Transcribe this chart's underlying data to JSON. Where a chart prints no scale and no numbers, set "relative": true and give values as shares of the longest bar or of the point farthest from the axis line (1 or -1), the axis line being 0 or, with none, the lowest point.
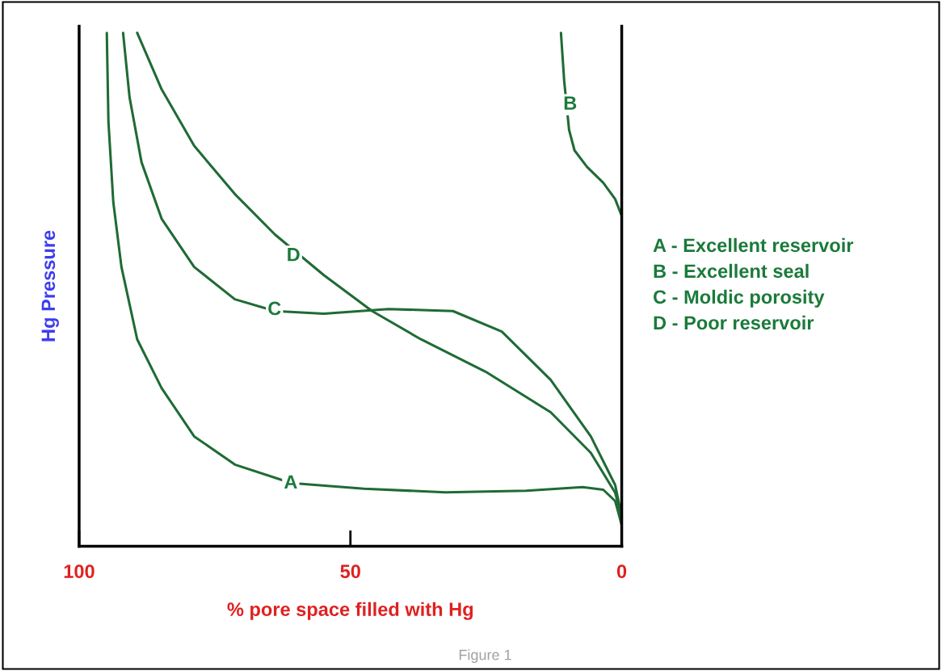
{
  "chart_data": {
    "type": "line",
    "relative": true,
    "xlabel": "% pore space filled with Hg",
    "ylabel": "Hg Pressure",
    "xlim": [
      100,
      0
    ],
    "xticks": [
      100,
      50,
      0
    ],
    "grid": false,
    "marker": "none",
    "line_style": "solid",
    "series": [
      {
        "color": "#1f6b35",
        "x": [
          94.9,
          94.6,
          93.7,
          92.2,
          89.3,
          84.8,
          78.8,
          71.3,
          60.9,
          47.5,
          32.5,
          17.6,
          7.2,
          3.4,
          1.2,
          0
        ],
        "values": [
          1,
          0.827,
          0.67,
          0.544,
          0.403,
          0.308,
          0.214,
          0.159,
          0.123,
          0.112,
          0.105,
          0.108,
          0.115,
          0.11,
          0.088,
          0.041
        ]
      },
      {
        "color": "#1f6b35",
        "x": [
          11.2,
          10.6,
          9.7,
          8.7,
          6.4,
          3.4,
          1.2,
          0.1
        ],
        "values": [
          1,
          0.906,
          0.811,
          0.771,
          0.739,
          0.708,
          0.676,
          0.646
        ]
      },
      {
        "color": "#1f6b35",
        "x": [
          91.9,
          90.7,
          88.5,
          84.8,
          78.8,
          71.3,
          63.9,
          54.9,
          43.0,
          31.1,
          22.1,
          13.1,
          5.7,
          1.2,
          0
        ],
        "values": [
          1,
          0.874,
          0.748,
          0.638,
          0.544,
          0.481,
          0.458,
          0.453,
          0.462,
          0.458,
          0.418,
          0.324,
          0.214,
          0.119,
          0.057
        ]
      },
      {
        "color": "#1f6b35",
        "x": [
          89.3,
          84.8,
          78.8,
          71.3,
          63.9,
          54.9,
          46.0,
          37.0,
          25.1,
          13.1,
          5.7,
          1.2,
          0
        ],
        "values": [
          1,
          0.89,
          0.78,
          0.686,
          0.607,
          0.528,
          0.458,
          0.403,
          0.34,
          0.261,
          0.182,
          0.104,
          0.057
        ]
      }
    ],
    "annotations": [
      {
        "text": "A",
        "x": 61,
        "y": 0.122
      },
      {
        "text": "B",
        "x": 9.5,
        "y": 0.86
      },
      {
        "text": "C",
        "x": 64,
        "y": 0.46
      },
      {
        "text": "D",
        "x": 60.5,
        "y": 0.565
      },
      "A - Excellent reservoir",
      "B - Excellent seal",
      "C - Moldic porosity",
      "D - Poor reservoir",
      "Figure 1"
    ]
  }
}
